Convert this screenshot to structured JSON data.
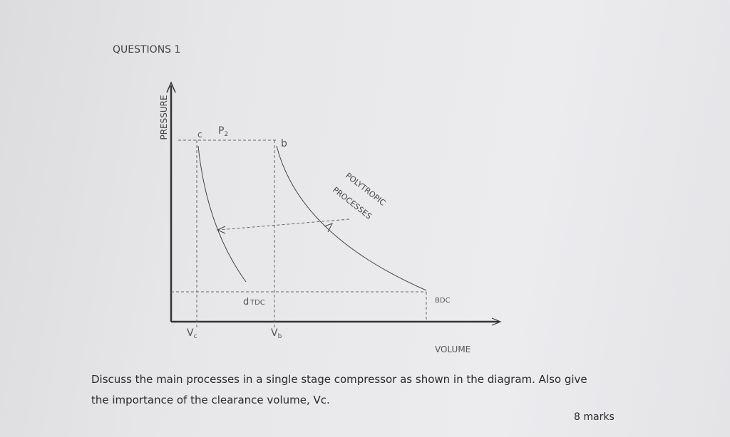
{
  "header": {
    "title": "QUESTIONS 1"
  },
  "diagram": {
    "y_axis_label": "PRESSURE",
    "x_axis_label": "VOLUME",
    "pressure_label": {
      "main": "P",
      "sub": "2"
    },
    "points": {
      "c": "c",
      "b": "b",
      "d": "d"
    },
    "tdc": "TDC",
    "bdc": "BDC",
    "process_label": [
      "POLYTROPIC",
      "PROCESSES"
    ],
    "clearance_volume": {
      "main": "V",
      "sub": "c"
    },
    "swept_volume": {
      "main": "V",
      "sub": "b"
    }
  },
  "question": {
    "lines": [
      "Discuss the main processes in a single stage compressor as shown in the diagram. Also give",
      "the importance of the clearance volume, Vc."
    ],
    "marks": "8 marks"
  }
}
